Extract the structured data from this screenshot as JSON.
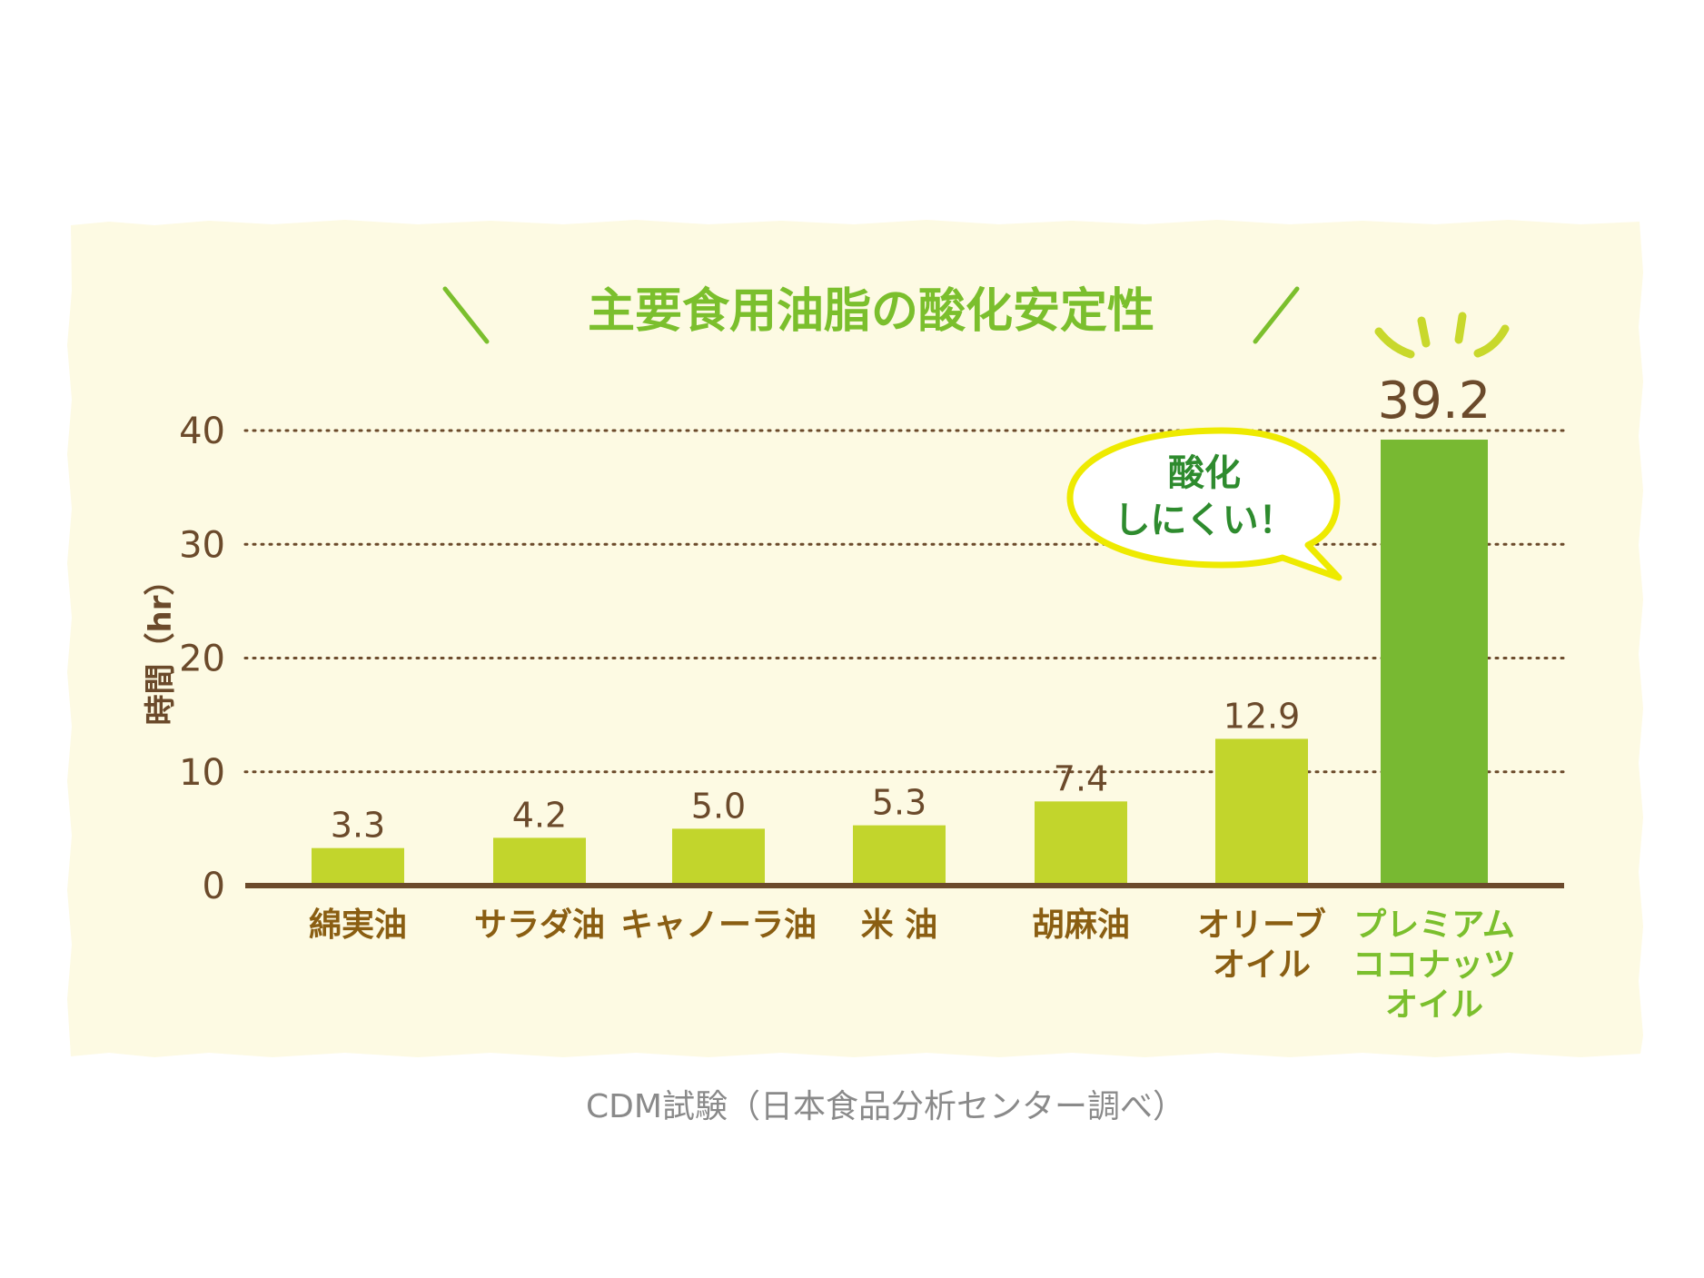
{
  "chart_data": {
    "type": "bar",
    "title": "主要食用油脂の酸化安定性",
    "ylabel": "時間（hr）",
    "xlabel": "",
    "ylim": [
      0,
      40
    ],
    "yticks": [
      "0",
      "10",
      "20",
      "30",
      "40"
    ],
    "categories": [
      [
        "綿実油"
      ],
      [
        "サラダ油"
      ],
      [
        "キャノーラ油"
      ],
      [
        "米 油"
      ],
      [
        "胡麻油"
      ],
      [
        "オリーブ",
        "オイル"
      ],
      [
        "プレミアム",
        "ココナッツ",
        "オイル"
      ]
    ],
    "values": [
      3.3,
      4.2,
      5.0,
      5.3,
      7.4,
      12.9,
      39.2
    ],
    "value_labels": [
      "3.3",
      "4.2",
      "5.0",
      "5.3",
      "7.4",
      "12.9",
      "39.2"
    ],
    "highlight_index": 6,
    "grid": "dotted horizontal",
    "annotation": [
      "酸化",
      "しにくい！"
    ],
    "source": "CDM試験（日本食品分析センター調べ）"
  },
  "colors": {
    "panel": "#fdfae3",
    "bar": "#c2d52c",
    "bar_highlight": "#78b932",
    "axis": "#6b4a2b",
    "label": "#8a5e12",
    "highlight_text": "#7bbf2d",
    "title": "#7bbf2d",
    "bubble_stroke": "#eeea00",
    "bubble_text": "#2e8b2e",
    "source_text": "#8a8a8a"
  }
}
